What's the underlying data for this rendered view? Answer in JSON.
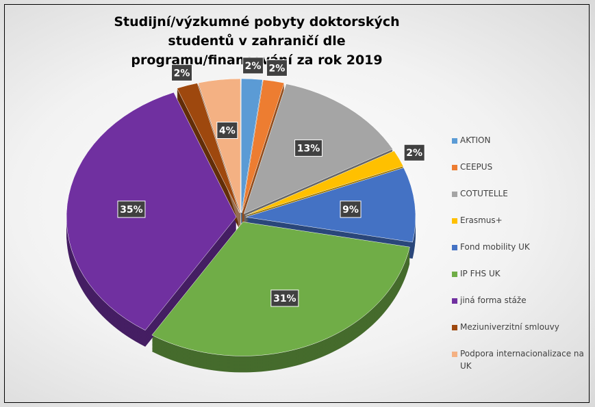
{
  "chart_data": {
    "type": "pie",
    "title": "Studijní/výzkumné pobyty doktorských studentů v zahraničí dle programu/financování za rok 2019",
    "categories": [
      "AKTION",
      "CEEPUS",
      "COTUTELLE",
      "Erasmus+",
      "Fond mobility UK",
      "IP FHS UK",
      "jiná forma stáže",
      "Meziuniverzitní smlouvy",
      "Podpora internacionalizace na UK"
    ],
    "values": [
      2,
      2,
      13,
      2,
      9,
      31,
      35,
      2,
      4
    ],
    "value_labels": [
      "2%",
      "2%",
      "13%",
      "2%",
      "9%",
      "31%",
      "35%",
      "2%",
      "4%"
    ],
    "colors": [
      "#5b9bd5",
      "#ed7d31",
      "#a5a5a5",
      "#ffc000",
      "#4472c4",
      "#70ad47",
      "#7030a0",
      "#9e480e",
      "#f4b183"
    ],
    "legend": "right"
  }
}
